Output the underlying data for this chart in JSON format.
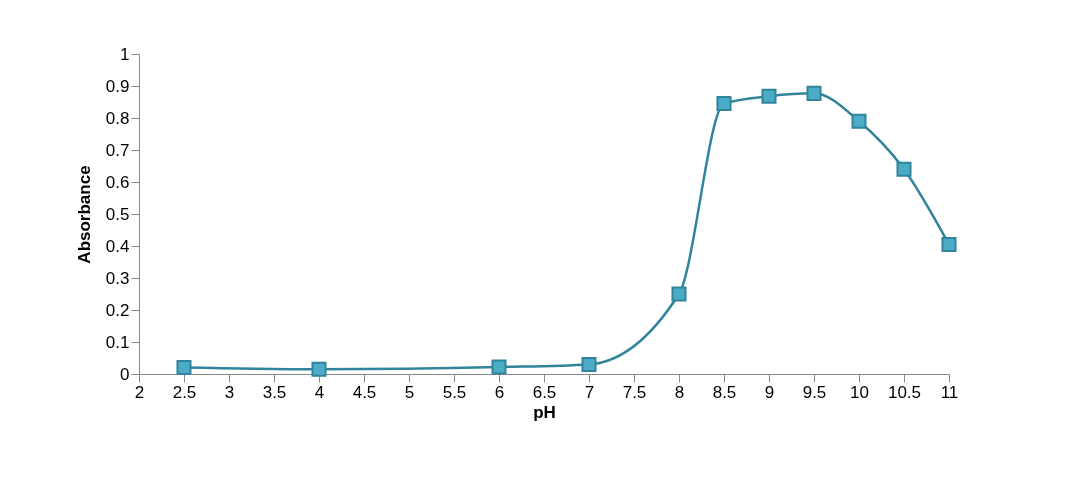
{
  "chart_data": {
    "type": "line",
    "xlabel": "pH",
    "ylabel": "Absorbance",
    "x": [
      2.5,
      4,
      6,
      7,
      8,
      8.5,
      9,
      9.5,
      10,
      10.5,
      11
    ],
    "series": [
      {
        "color": "#31849b",
        "values": [
          0.02,
          0.015,
          0.022,
          0.03,
          0.25,
          0.845,
          0.868,
          0.877,
          0.79,
          0.64,
          0.405
        ]
      }
    ],
    "xlim": [
      2,
      11
    ],
    "xticks": [
      2,
      2.5,
      3,
      3.5,
      4,
      4.5,
      5,
      5.5,
      6,
      6.5,
      7,
      7.5,
      8,
      8.5,
      9,
      9.5,
      10,
      10.5,
      11
    ],
    "ylim": [
      0,
      1
    ],
    "yticks": [
      0,
      0.1,
      0.2,
      0.3,
      0.4,
      0.5,
      0.6,
      0.7,
      0.8,
      0.9,
      1
    ],
    "grid": false,
    "legend": false,
    "marker": "square",
    "line_style": "solid"
  }
}
